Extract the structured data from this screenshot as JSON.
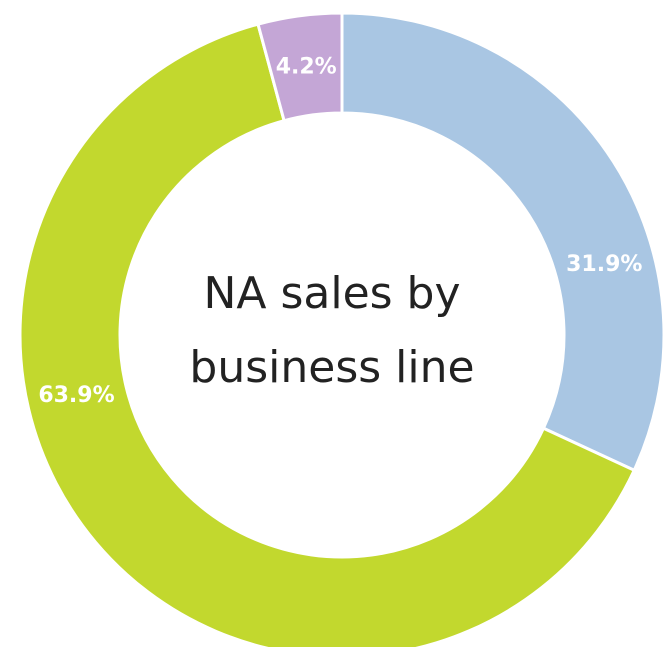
{
  "chart_data": {
    "type": "pie",
    "variant": "donut",
    "title_lines": [
      "NA sales by",
      "business line"
    ],
    "slices": [
      {
        "value": 31.9,
        "label": "31.9%",
        "color": "#a9c6e3"
      },
      {
        "value": 63.9,
        "label": "63.9%",
        "color": "#c2d82e"
      },
      {
        "value": 4.2,
        "label": "4.2%",
        "color": "#c4a6d6"
      }
    ],
    "start_angle_deg": 0,
    "direction": "clockwise",
    "separator_color": "#ffffff"
  }
}
